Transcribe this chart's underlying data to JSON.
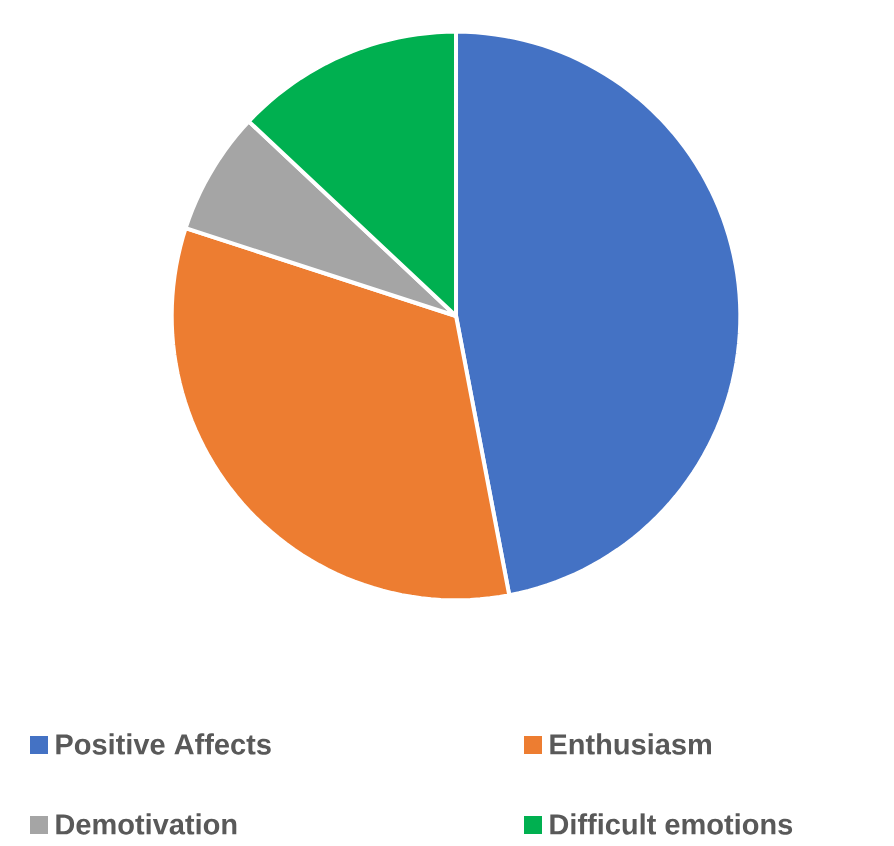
{
  "chart_data": {
    "type": "pie",
    "categories": [
      "Positive Affects",
      "Enthusiasm",
      "Demotivation",
      "Difficult emotions"
    ],
    "values": [
      47,
      33,
      7,
      13
    ],
    "colors": [
      "#4472c4",
      "#ed7d31",
      "#a5a5a5",
      "#00b050"
    ],
    "legend": "bottom"
  }
}
